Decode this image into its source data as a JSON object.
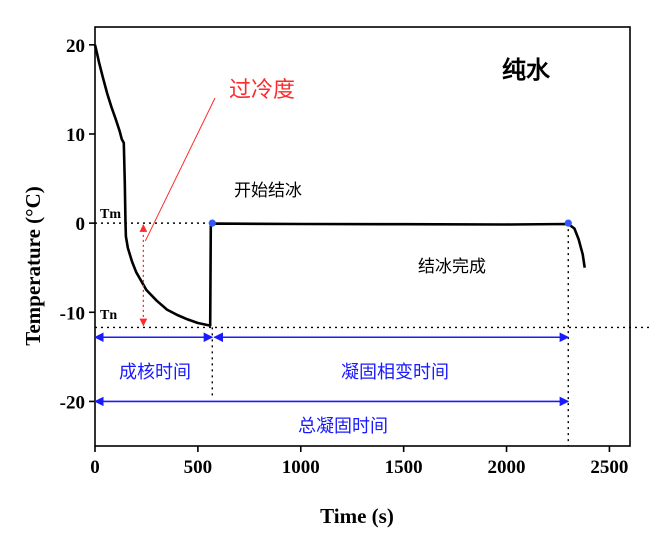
{
  "chart_data": {
    "type": "line",
    "title": "纯水",
    "xlabel": "Time (s)",
    "ylabel": "Temperature (°C)",
    "xlim": [
      0,
      2600
    ],
    "ylim": [
      -25,
      22
    ],
    "xticks": [
      0,
      500,
      1000,
      1500,
      2000,
      2500
    ],
    "yticks": [
      20,
      10,
      0,
      -10,
      -20
    ],
    "series": [
      {
        "color": "#000000",
        "points": [
          [
            0,
            20
          ],
          [
            10,
            19.0
          ],
          [
            20,
            18.0
          ],
          [
            40,
            16.2
          ],
          [
            60,
            14.5
          ],
          [
            80,
            13.0
          ],
          [
            100,
            11.7
          ],
          [
            120,
            10.3
          ],
          [
            130,
            9.4
          ],
          [
            140,
            9.0
          ],
          [
            145,
            4.5
          ],
          [
            148,
            0.0
          ],
          [
            150,
            -1.5
          ],
          [
            160,
            -2.8
          ],
          [
            180,
            -4.3
          ],
          [
            200,
            -5.5
          ],
          [
            250,
            -7.5
          ],
          [
            300,
            -8.7
          ],
          [
            350,
            -9.7
          ],
          [
            400,
            -10.3
          ],
          [
            450,
            -10.8
          ],
          [
            500,
            -11.2
          ],
          [
            560,
            -11.5
          ],
          [
            563,
            -0.3
          ],
          [
            580,
            -0.05
          ],
          [
            1000,
            -0.1
          ],
          [
            1500,
            -0.12
          ],
          [
            2000,
            -0.15
          ],
          [
            2300,
            -0.1
          ],
          [
            2330,
            -0.6
          ],
          [
            2350,
            -1.8
          ],
          [
            2370,
            -3.5
          ],
          [
            2380,
            -5.0
          ]
        ]
      }
    ],
    "reference_lines": {
      "Tm": 0,
      "Tn": -11.7,
      "nucleation_end_time": 570,
      "freezing_end_time": 2300
    },
    "markers": [
      {
        "x": 570,
        "y": 0,
        "label": "开始结冰",
        "color": "#3355ff"
      },
      {
        "x": 2300,
        "y": 0,
        "label": "结冰完成",
        "color": "#3355ff"
      }
    ],
    "annotations": {
      "supercooling": "过冷度",
      "tm_label": "Tm",
      "tn_label": "Tn",
      "nucleation_time": "成核时间",
      "solidification_phase_time": "凝固相变时间",
      "total_solidification_time": "总凝固时间"
    },
    "grid": false
  },
  "colors": {
    "curve": "#000000",
    "blue_annotation": "#1a1aff",
    "red_annotation": "#ff2a2a",
    "marker": "#3355ff"
  }
}
